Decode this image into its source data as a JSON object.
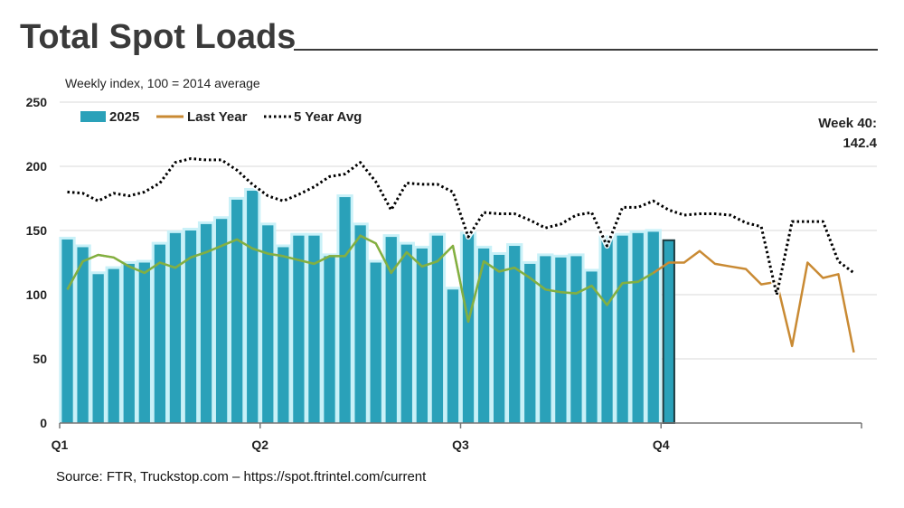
{
  "page": {
    "title": "Total Spot Loads",
    "subtitle": "Weekly index, 100 = 2014 average",
    "callout_line1": "Week 40:",
    "callout_line2": "142.4",
    "source": "Source: FTR, Truckstop.com – https://spot.ftrintel.com/current"
  },
  "chart_data": {
    "type": "bar",
    "title": "Total Spot Loads",
    "subtitle": "Weekly index, 100 = 2014 average",
    "ylim": [
      0,
      250
    ],
    "yticks": [
      0,
      50,
      100,
      150,
      200,
      250
    ],
    "x_range": [
      1,
      53
    ],
    "quarter_labels": [
      {
        "label": "Q1",
        "week": 1
      },
      {
        "label": "Q2",
        "week": 14
      },
      {
        "label": "Q3",
        "week": 27
      },
      {
        "label": "Q4",
        "week": 40
      }
    ],
    "legend": [
      "2025",
      "Last Year",
      "5 Year Avg"
    ],
    "legend_position": "top-left",
    "grid": true,
    "colors": {
      "bars": "#2aa1b9",
      "bars_glow": "#c9f1f8",
      "highlight_bar": "#2aa1b9",
      "highlight_border": "#1d3b40",
      "last_year": "#c98a33",
      "green_overlay": "#7cb342",
      "five_year": "#000000"
    },
    "series": [
      {
        "name": "2025",
        "weeks": [
          1,
          2,
          3,
          4,
          5,
          6,
          7,
          8,
          9,
          10,
          11,
          12,
          13,
          14,
          15,
          16,
          17,
          18,
          19,
          20,
          21,
          22,
          23,
          24,
          25,
          26,
          27,
          28,
          29,
          30,
          31,
          32,
          33,
          34,
          35,
          36,
          37,
          38,
          39,
          40
        ],
        "values": [
          143,
          137,
          116,
          120,
          124,
          125,
          139,
          148,
          150,
          155,
          159,
          174,
          181,
          154,
          137,
          146,
          146,
          130,
          176,
          154,
          125,
          145,
          139,
          136,
          146,
          104,
          147,
          136,
          131,
          138,
          124,
          130,
          129,
          130,
          118,
          144,
          146,
          148,
          149,
          142.4
        ]
      },
      {
        "name": "Last Year",
        "weeks": [
          1,
          2,
          3,
          4,
          5,
          6,
          7,
          8,
          9,
          10,
          11,
          12,
          13,
          14,
          15,
          16,
          17,
          18,
          19,
          20,
          21,
          22,
          23,
          24,
          25,
          26,
          27,
          28,
          29,
          30,
          31,
          32,
          33,
          34,
          35,
          36,
          37,
          38,
          39,
          40,
          41,
          42,
          43,
          44,
          45,
          46,
          47,
          48,
          49,
          50,
          51,
          52
        ],
        "values": [
          104,
          126,
          131,
          129,
          122,
          117,
          125,
          121,
          129,
          133,
          138,
          143,
          136,
          132,
          130,
          127,
          124,
          130,
          130,
          146,
          140,
          117,
          133,
          122,
          126,
          138,
          79,
          126,
          118,
          121,
          113,
          104,
          102,
          101,
          107,
          92,
          109,
          110,
          117,
          125,
          125,
          134,
          124,
          122,
          120,
          108,
          110,
          60,
          125,
          113,
          116,
          55
        ]
      },
      {
        "name": "5 Year Avg",
        "weeks": [
          1,
          2,
          3,
          4,
          5,
          6,
          7,
          8,
          9,
          10,
          11,
          12,
          13,
          14,
          15,
          16,
          17,
          18,
          19,
          20,
          21,
          22,
          23,
          24,
          25,
          26,
          27,
          28,
          29,
          30,
          31,
          32,
          33,
          34,
          35,
          36,
          37,
          38,
          39,
          40,
          41,
          42,
          43,
          44,
          45,
          46,
          47,
          48,
          49,
          50,
          51,
          52
        ],
        "values": [
          180,
          179,
          173,
          179,
          177,
          180,
          187,
          203,
          206,
          205,
          205,
          197,
          186,
          177,
          173,
          178,
          184,
          192,
          194,
          203,
          188,
          166,
          187,
          186,
          186,
          180,
          145,
          164,
          163,
          163,
          158,
          152,
          155,
          162,
          164,
          138,
          168,
          168,
          173,
          166,
          162,
          163,
          163,
          162,
          156,
          153,
          100,
          157,
          157,
          157,
          126,
          117
        ]
      }
    ]
  }
}
